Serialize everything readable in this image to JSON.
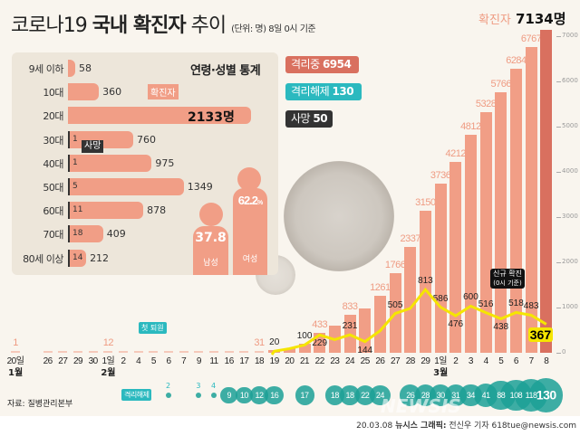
{
  "header": {
    "title_prefix": "코로나19",
    "title_bold": "국내 확진자",
    "title_suffix": "추이",
    "unit_note": "(단위: 명) 8일 0시 기준",
    "total_label": "확진자",
    "total_value": "7134명"
  },
  "age_panel": {
    "title": "연령·성별 통계",
    "confirmed_tag": "확진자",
    "death_tag": "사망",
    "rows": [
      {
        "label": "9세 이하",
        "confirmed": 58,
        "confirmed_text": "58",
        "deaths": ""
      },
      {
        "label": "10대",
        "confirmed": 360,
        "confirmed_text": "360",
        "deaths": ""
      },
      {
        "label": "20대",
        "confirmed": 2133,
        "confirmed_text": "2133명",
        "deaths": ""
      },
      {
        "label": "30대",
        "confirmed": 760,
        "confirmed_text": "760",
        "deaths": "1"
      },
      {
        "label": "40대",
        "confirmed": 975,
        "confirmed_text": "975",
        "deaths": "1"
      },
      {
        "label": "50대",
        "confirmed": 1349,
        "confirmed_text": "1349",
        "deaths": "5"
      },
      {
        "label": "60대",
        "confirmed": 878,
        "confirmed_text": "878",
        "deaths": "11"
      },
      {
        "label": "70대",
        "confirmed": 409,
        "confirmed_text": "409",
        "deaths": "18"
      },
      {
        "label": "80세 이상",
        "confirmed": 212,
        "confirmed_text": "212",
        "deaths": "14"
      }
    ],
    "gender": {
      "male_label": "남성",
      "male_pct": "37.8",
      "female_label": "여성",
      "female_pct": "62.2",
      "pct_sign": "%"
    }
  },
  "status": {
    "isolated": {
      "label": "격리중",
      "value": "6954",
      "color": "#d9705f"
    },
    "released": {
      "label": "격리해제",
      "value": "130",
      "color": "#2bb9bf"
    },
    "deaths": {
      "label": "사망",
      "value": "50",
      "color": "#333333"
    }
  },
  "chart_data": {
    "type": "bar+line",
    "dates": [
      "20일",
      "26",
      "27",
      "29",
      "30",
      "1일",
      "2",
      "4",
      "5",
      "6",
      "7",
      "9",
      "11",
      "16",
      "17",
      "18",
      "19",
      "20",
      "21",
      "22",
      "23",
      "24",
      "25",
      "26",
      "27",
      "28",
      "29",
      "1일",
      "2",
      "3",
      "4",
      "5",
      "6",
      "7",
      "8"
    ],
    "months": [
      {
        "label": "1월",
        "date_index": 0
      },
      {
        "label": "2월",
        "date_index": 5
      },
      {
        "label": "3월",
        "date_index": 27
      }
    ],
    "cumulative": [
      1,
      3,
      4,
      4,
      6,
      12,
      15,
      16,
      18,
      23,
      24,
      27,
      28,
      29,
      30,
      31,
      51,
      104,
      204,
      433,
      602,
      833,
      977,
      1261,
      1766,
      2337,
      3150,
      3736,
      4212,
      4812,
      5328,
      5766,
      6284,
      6767,
      7134
    ],
    "cumulative_labels": {
      "0": "1",
      "5": "12",
      "15": "31",
      "19": "433",
      "21": "833",
      "23": "1261",
      "24": "1766",
      "25": "2337",
      "26": "3150",
      "27": "3736",
      "28": "4212",
      "29": "4812",
      "30": "5328",
      "31": "5766",
      "32": "6284",
      "33": "6767"
    },
    "new_cases_start_index": 16,
    "new_cases": [
      20,
      53,
      100,
      229,
      169,
      231,
      144,
      284,
      505,
      571,
      813,
      586,
      476,
      600,
      516,
      438,
      518,
      483,
      367
    ],
    "new_cases_labels": {
      "16": "20",
      "18": "100",
      "19": "229",
      "21": "231",
      "22": "144",
      "24": "505",
      "26": "813",
      "27": "586",
      "28": "476",
      "29": "600",
      "30": "516",
      "31": "438",
      "32": "518",
      "33": "483",
      "34": "367"
    },
    "y_ticks": [
      0,
      1000,
      2000,
      3000,
      4000,
      5000,
      6000,
      7000
    ],
    "ylim": [
      0,
      7000
    ],
    "bar_color": "#f19e86",
    "last_bar_color": "#d9705f",
    "line_color": "#f5e500",
    "released_label": "격리해제",
    "released": [
      {
        "date_index": 9,
        "value": 2
      },
      {
        "date_index": 11,
        "value": 3
      },
      {
        "date_index": 12,
        "value": 4
      },
      {
        "date_index": 13,
        "value": 9
      },
      {
        "date_index": 14,
        "value": 10
      },
      {
        "date_index": 15,
        "value": 12
      },
      {
        "date_index": 16,
        "value": 16
      },
      {
        "date_index": 18,
        "value": 17
      },
      {
        "date_index": 20,
        "value": 18
      },
      {
        "date_index": 21,
        "value": 18
      },
      {
        "date_index": 22,
        "value": 22
      },
      {
        "date_index": 23,
        "value": 24
      },
      {
        "date_index": 25,
        "value": 26
      },
      {
        "date_index": 26,
        "value": 28
      },
      {
        "date_index": 27,
        "value": 30
      },
      {
        "date_index": 28,
        "value": 31
      },
      {
        "date_index": 29,
        "value": 34
      },
      {
        "date_index": 30,
        "value": 41
      },
      {
        "date_index": 31,
        "value": 88
      },
      {
        "date_index": 32,
        "value": 108
      },
      {
        "date_index": 33,
        "value": 118
      },
      {
        "date_index": 34,
        "value": 130
      }
    ],
    "annotations": {
      "first_release": "첫 퇴원",
      "new_cases_title": "신규 확진",
      "new_cases_sub": "(0시 기준)"
    }
  },
  "footer": {
    "source": "자료: 질병관리본부",
    "credit_date": "20.03.08",
    "credit_org": "뉴시스 그래픽:",
    "credit_person": "전신우 기자 618tue@newsis.com",
    "watermark": "NEWSIS"
  }
}
